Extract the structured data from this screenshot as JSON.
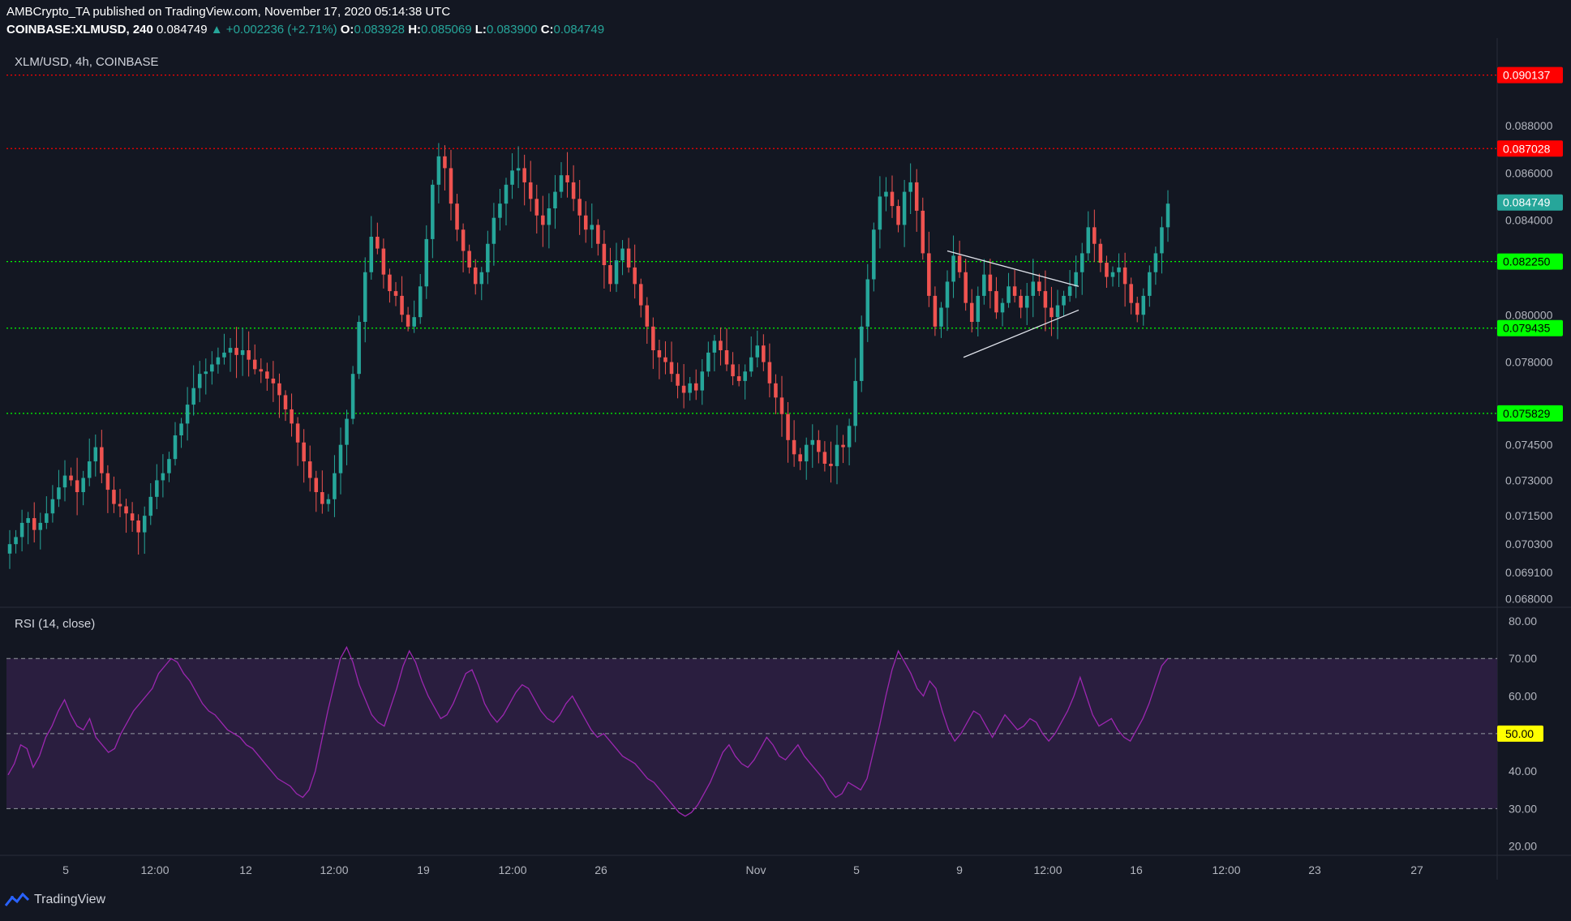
{
  "header": {
    "publisher": "AMBCrypto_TA published on TradingView.com, November 17, 2020 05:14:38 UTC",
    "symbol": "COINBASE:XLMUSD, 240",
    "last": "0.084749",
    "change": "▲ +0.002236 (+2.71%)",
    "o_label": "O:",
    "o": "0.083928",
    "h_label": "H:",
    "h": "0.085069",
    "l_label": "L:",
    "l": "0.083900",
    "c_label": "C:",
    "c": "0.084749"
  },
  "footer": {
    "brand": "TradingView",
    "icon": "tradingview-logo-icon"
  },
  "colors": {
    "background": "#131722",
    "up": "#26a69a",
    "down": "#ef5350",
    "resistance": "#ff0000",
    "support": "#00ff00",
    "rsi": "#9c27b0",
    "rsi_band": "#2a1e3f",
    "last_price": "#26a69a",
    "mid_label": "#ffff00"
  },
  "chart_data": [
    {
      "type": "candlestick",
      "title": "XLM/USD, 4h, COINBASE",
      "ylim": [
        0.0677,
        0.0917
      ],
      "y_ticks": [
        "0.088000",
        "0.086000",
        "0.084000",
        "0.080000",
        "0.078000",
        "0.074500",
        "0.073000",
        "0.071500",
        "0.070300",
        "0.069100",
        "0.068000"
      ],
      "x_ticks": [
        "5",
        "12:00",
        "12",
        "12:00",
        "19",
        "12:00",
        "26",
        "Nov",
        "5",
        "9",
        "12:00",
        "16",
        "12:00",
        "23",
        "27"
      ],
      "levels": [
        {
          "label": "0.090137",
          "value": 0.090137,
          "kind": "resistance"
        },
        {
          "label": "0.087028",
          "value": 0.087028,
          "kind": "resistance"
        },
        {
          "label": "0.082250",
          "value": 0.08225,
          "kind": "support"
        },
        {
          "label": "0.079435",
          "value": 0.079435,
          "kind": "support"
        },
        {
          "label": "0.075829",
          "value": 0.075829,
          "kind": "support"
        }
      ],
      "last_price": {
        "label": "0.084749",
        "value": 0.084749
      },
      "triangle": {
        "upper": [
          [
            0.0827,
            0
          ],
          [
            0.0812,
            1
          ]
        ],
        "lower": [
          [
            0.0782,
            0
          ],
          [
            0.0802,
            1
          ]
        ]
      },
      "close_path": [
        0.0703,
        0.0706,
        0.0712,
        0.0714,
        0.0709,
        0.0712,
        0.0716,
        0.0722,
        0.0727,
        0.0732,
        0.073,
        0.0725,
        0.0731,
        0.0738,
        0.0744,
        0.0733,
        0.0726,
        0.072,
        0.0719,
        0.0716,
        0.0713,
        0.0708,
        0.0715,
        0.0723,
        0.073,
        0.0733,
        0.0739,
        0.0749,
        0.0754,
        0.0762,
        0.0769,
        0.0775,
        0.0776,
        0.0779,
        0.0782,
        0.0784,
        0.0786,
        0.0783,
        0.0785,
        0.0781,
        0.0777,
        0.0776,
        0.0773,
        0.0771,
        0.0766,
        0.076,
        0.0754,
        0.0746,
        0.0738,
        0.0731,
        0.0725,
        0.072,
        0.0722,
        0.0733,
        0.0745,
        0.0756,
        0.0775,
        0.0797,
        0.0818,
        0.0833,
        0.0828,
        0.0817,
        0.081,
        0.0808,
        0.08,
        0.0795,
        0.0799,
        0.0812,
        0.0832,
        0.0855,
        0.0867,
        0.0862,
        0.0847,
        0.0836,
        0.0827,
        0.082,
        0.0813,
        0.0818,
        0.083,
        0.0841,
        0.0847,
        0.0855,
        0.0861,
        0.0862,
        0.0856,
        0.0849,
        0.0842,
        0.0838,
        0.0845,
        0.0852,
        0.0859,
        0.0856,
        0.0849,
        0.0842,
        0.0836,
        0.0838,
        0.083,
        0.0821,
        0.0813,
        0.0823,
        0.0828,
        0.082,
        0.0813,
        0.0804,
        0.0795,
        0.0785,
        0.0782,
        0.078,
        0.0775,
        0.077,
        0.0767,
        0.0771,
        0.0768,
        0.0776,
        0.0784,
        0.0789,
        0.0785,
        0.0779,
        0.0774,
        0.0772,
        0.0776,
        0.0782,
        0.0787,
        0.078,
        0.0771,
        0.0765,
        0.0758,
        0.0747,
        0.0741,
        0.0738,
        0.0745,
        0.0747,
        0.0742,
        0.0737,
        0.0736,
        0.0745,
        0.0744,
        0.0753,
        0.0772,
        0.0795,
        0.0815,
        0.0836,
        0.085,
        0.0852,
        0.0846,
        0.0838,
        0.0852,
        0.0856,
        0.0844,
        0.0826,
        0.0808,
        0.0795,
        0.0803,
        0.0814,
        0.0825,
        0.0818,
        0.0805,
        0.0797,
        0.0808,
        0.0817,
        0.081,
        0.0801,
        0.0805,
        0.0812,
        0.0808,
        0.0803,
        0.0808,
        0.0814,
        0.081,
        0.0803,
        0.0799,
        0.0804,
        0.0808,
        0.0812,
        0.0818,
        0.0826,
        0.0837,
        0.083,
        0.0822,
        0.0816,
        0.0818,
        0.082,
        0.0813,
        0.0805,
        0.08,
        0.0808,
        0.0818,
        0.0826,
        0.0837,
        0.0847
      ]
    },
    {
      "type": "line",
      "title": "RSI (14, close)",
      "ylim": [
        18,
        83
      ],
      "y_ticks": [
        "80.00",
        "70.00",
        "60.00",
        "40.00",
        "30.00",
        "20.00"
      ],
      "mid_label": "50.00",
      "bands": [
        30,
        50,
        70
      ],
      "values": [
        39,
        42,
        47,
        46,
        41,
        44,
        49,
        52,
        56,
        59,
        55,
        52,
        51,
        54,
        49,
        47,
        45,
        46,
        50,
        53,
        56,
        58,
        60,
        62,
        66,
        68,
        70,
        69,
        66,
        64,
        61,
        58,
        56,
        55,
        53,
        51,
        50,
        49,
        47,
        46,
        44,
        42,
        40,
        38,
        37,
        36,
        34,
        33,
        35,
        40,
        48,
        56,
        63,
        70,
        73,
        69,
        63,
        59,
        55,
        53,
        52,
        57,
        62,
        68,
        72,
        69,
        64,
        60,
        57,
        54,
        55,
        58,
        62,
        66,
        67,
        63,
        58,
        55,
        53,
        55,
        58,
        61,
        63,
        62,
        59,
        56,
        54,
        53,
        55,
        58,
        60,
        57,
        54,
        51,
        49,
        50,
        48,
        46,
        44,
        43,
        42,
        40,
        38,
        37,
        35,
        33,
        31,
        29,
        28,
        29,
        31,
        34,
        37,
        41,
        45,
        47,
        44,
        42,
        41,
        43,
        46,
        49,
        47,
        44,
        43,
        45,
        47,
        44,
        42,
        40,
        38,
        35,
        33,
        34,
        37,
        36,
        35,
        38,
        45,
        52,
        60,
        67,
        72,
        69,
        66,
        62,
        60,
        64,
        62,
        56,
        51,
        48,
        50,
        53,
        56,
        55,
        52,
        49,
        52,
        55,
        53,
        51,
        52,
        54,
        53,
        50,
        48,
        50,
        53,
        56,
        60,
        65,
        60,
        55,
        52,
        53,
        54,
        51,
        49,
        48,
        51,
        54,
        58,
        63,
        68,
        70
      ]
    }
  ]
}
